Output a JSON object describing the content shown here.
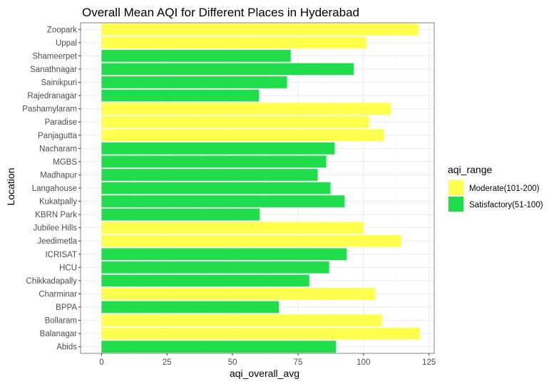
{
  "chart_data": {
    "type": "bar",
    "orientation": "horizontal",
    "title": "Overall Mean AQI for Different Places in Hyderabad",
    "xlabel": "aqi_overall_avg",
    "ylabel": "Location",
    "xlim": [
      -8,
      127
    ],
    "xticks": [
      0,
      25,
      50,
      75,
      100,
      125
    ],
    "grid": true,
    "legend_position": "right",
    "legend": {
      "title": "aqi_range",
      "entries": [
        {
          "label": "Moderate(101-200)",
          "color": "#FFFF4D"
        },
        {
          "label": "Satisfactory(51-100)",
          "color": "#22DD4B"
        }
      ]
    },
    "categories": [
      "Abids",
      "Balanagar",
      "Bollaram",
      "BPPA",
      "Charminar",
      "Chikkadapally",
      "HCU",
      "ICRISAT",
      "Jeedimetla",
      "Jubilee Hills",
      "KBRN Park",
      "Kukatpally",
      "Langahouse",
      "Madhapur",
      "MGBS",
      "Nacharam",
      "Panjagutta",
      "Paradise",
      "Pashamylaram",
      "Rajedranagar",
      "Sainikpuri",
      "Sanathnagar",
      "Shameerpet",
      "Uppal",
      "Zoopark"
    ],
    "values": [
      89.5,
      121.5,
      107,
      67.7,
      104.5,
      79.3,
      86.9,
      93.6,
      114.3,
      100,
      60.4,
      92.8,
      87.4,
      82.5,
      85.8,
      89,
      107.7,
      102.1,
      110.4,
      60.1,
      70.8,
      96.3,
      72.2,
      101,
      121
    ],
    "range": [
      "Satisfactory(51-100)",
      "Moderate(101-200)",
      "Moderate(101-200)",
      "Satisfactory(51-100)",
      "Moderate(101-200)",
      "Satisfactory(51-100)",
      "Satisfactory(51-100)",
      "Satisfactory(51-100)",
      "Moderate(101-200)",
      "Moderate(101-200)",
      "Satisfactory(51-100)",
      "Satisfactory(51-100)",
      "Satisfactory(51-100)",
      "Satisfactory(51-100)",
      "Satisfactory(51-100)",
      "Satisfactory(51-100)",
      "Moderate(101-200)",
      "Moderate(101-200)",
      "Moderate(101-200)",
      "Satisfactory(51-100)",
      "Satisfactory(51-100)",
      "Satisfactory(51-100)",
      "Satisfactory(51-100)",
      "Moderate(101-200)",
      "Moderate(101-200)"
    ]
  }
}
